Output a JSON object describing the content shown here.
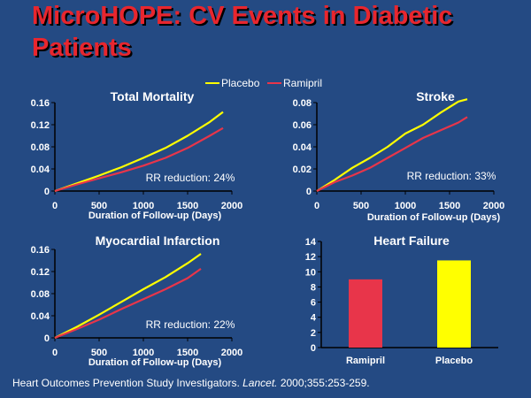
{
  "title": "MicroHOPE: CV Events in Diabetic Patients",
  "legend": [
    {
      "label": "Placebo",
      "color": "#ffff00"
    },
    {
      "label": "Ramipril",
      "color": "#e8354a"
    }
  ],
  "colors": {
    "background": "#244a83",
    "title": "#e8262e",
    "placebo": "#ffff00",
    "ramipril": "#e8354a"
  },
  "citation": {
    "before": "Heart Outcomes Prevention Study Investigators. ",
    "journal": "Lancet.",
    "after": " 2000;355:253-259."
  },
  "chart_data": [
    {
      "type": "line",
      "title": "Total Mortality",
      "xlabel": "Duration of Follow-up (Days)",
      "ylabel": "",
      "xlim": [
        0,
        2000
      ],
      "ylim": [
        0,
        0.16
      ],
      "x_ticks": [
        "0",
        "500",
        "1000",
        "1500",
        "2000"
      ],
      "y_ticks": [
        "0",
        "0.04",
        "0.08",
        "0.12",
        "0.16"
      ],
      "annotation": "RR reduction: 24%",
      "series": [
        {
          "name": "Placebo",
          "x": [
            0,
            250,
            500,
            750,
            1000,
            1250,
            1500,
            1750,
            1900
          ],
          "y": [
            0,
            0.014,
            0.028,
            0.043,
            0.06,
            0.078,
            0.1,
            0.125,
            0.143
          ]
        },
        {
          "name": "Ramipril",
          "x": [
            0,
            250,
            500,
            750,
            1000,
            1250,
            1500,
            1750,
            1900
          ],
          "y": [
            0,
            0.012,
            0.023,
            0.034,
            0.046,
            0.06,
            0.078,
            0.1,
            0.114
          ]
        }
      ]
    },
    {
      "type": "line",
      "title": "Stroke",
      "xlabel": "Duration of Follow-up (Days)",
      "ylabel": "",
      "xlim": [
        0,
        2000
      ],
      "ylim": [
        0,
        0.08
      ],
      "x_ticks": [
        "0",
        "500",
        "1000",
        "1500",
        "2000"
      ],
      "y_ticks": [
        "0",
        "0.02",
        "0.04",
        "0.06",
        "0.08"
      ],
      "annotation": "RR reduction: 33%",
      "series": [
        {
          "name": "Placebo",
          "x": [
            0,
            200,
            400,
            600,
            800,
            1000,
            1200,
            1400,
            1600,
            1700
          ],
          "y": [
            0,
            0.01,
            0.021,
            0.03,
            0.04,
            0.052,
            0.06,
            0.071,
            0.081,
            0.083
          ]
        },
        {
          "name": "Ramipril",
          "x": [
            0,
            200,
            400,
            600,
            800,
            1000,
            1200,
            1400,
            1600,
            1700
          ],
          "y": [
            0,
            0.008,
            0.014,
            0.021,
            0.03,
            0.039,
            0.048,
            0.055,
            0.062,
            0.067
          ]
        }
      ]
    },
    {
      "type": "line",
      "title": "Myocardial Infarction",
      "xlabel": "Duration of Follow-up (Days)",
      "ylabel": "",
      "xlim": [
        0,
        2000
      ],
      "ylim": [
        0,
        0.16
      ],
      "x_ticks": [
        "0",
        "500",
        "1000",
        "1500",
        "2000"
      ],
      "y_ticks": [
        "0",
        "0.04",
        "0.08",
        "0.12",
        "0.16"
      ],
      "annotation": "RR reduction: 22%",
      "series": [
        {
          "name": "Placebo",
          "x": [
            0,
            250,
            500,
            750,
            1000,
            1250,
            1500,
            1650
          ],
          "y": [
            0,
            0.02,
            0.042,
            0.065,
            0.088,
            0.11,
            0.135,
            0.152
          ]
        },
        {
          "name": "Ramipril",
          "x": [
            0,
            250,
            500,
            750,
            1000,
            1250,
            1500,
            1650
          ],
          "y": [
            0,
            0.016,
            0.033,
            0.052,
            0.07,
            0.088,
            0.108,
            0.125
          ]
        }
      ]
    },
    {
      "type": "bar",
      "title": "Heart Failure",
      "xlabel": "",
      "ylabel": "",
      "ylim": [
        0,
        14
      ],
      "y_ticks": [
        "0",
        "2",
        "4",
        "6",
        "8",
        "10",
        "12",
        "14"
      ],
      "categories": [
        "Ramipril",
        "Placebo"
      ],
      "values": [
        9,
        11.5
      ],
      "bar_colors": [
        "#e8354a",
        "#ffff00"
      ]
    }
  ]
}
